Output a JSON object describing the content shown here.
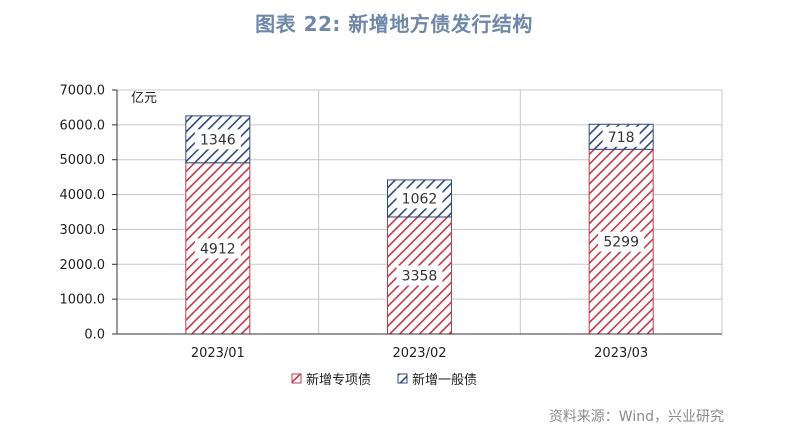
{
  "title": "图表 22: 新增地方债发行结构",
  "source": "资料来源：Wind，兴业研究",
  "chart_data": {
    "type": "bar",
    "stacked": true,
    "categories": [
      "2023/01",
      "2023/02",
      "2023/03"
    ],
    "series": [
      {
        "name": "新增专项债",
        "values": [
          4912,
          3358,
          5299
        ],
        "color": "#c0394b"
      },
      {
        "name": "新增一般债",
        "values": [
          1346,
          1062,
          718
        ],
        "color": "#2e4a7a"
      }
    ],
    "ylabel": "亿元",
    "ylim": [
      0,
      7000
    ],
    "yticks": [
      "0.0",
      "1000.0",
      "2000.0",
      "3000.0",
      "4000.0",
      "5000.0",
      "6000.0",
      "7000.0"
    ],
    "grid": true,
    "legend": "bottom"
  }
}
